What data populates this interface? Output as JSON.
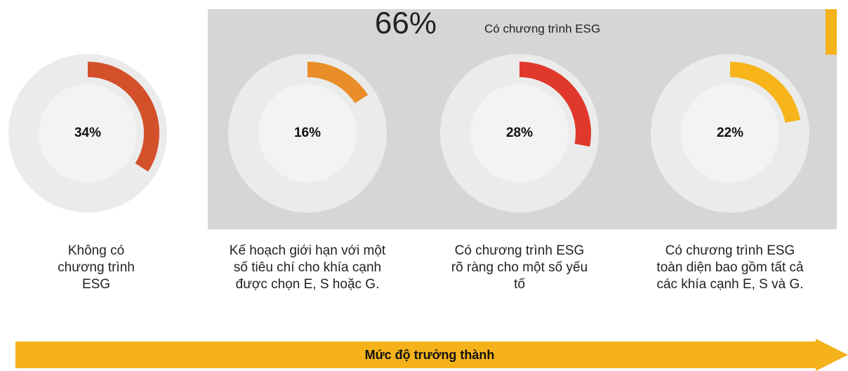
{
  "chart_data": {
    "type": "donut",
    "group_label": "66%",
    "group_text": "Có chương trình ESG",
    "categories": [
      "Không có chương trình ESG",
      "Kế hoạch giới hạn với một số tiêu chí cho khía cạnh được chọn E, S hoặc G.",
      "Có chương trình ESG rõ ràng cho một số yếu tố",
      "Có chương trình ESG toàn diện bao gồm tất cả các khía cạnh E, S và G."
    ],
    "values": [
      34,
      16,
      28,
      22
    ],
    "value_labels": [
      "34%",
      "16%",
      "28%",
      "22%"
    ],
    "colors": [
      "#d4502a",
      "#e88d27",
      "#e0382a",
      "#f7b51b"
    ],
    "axis_label": "Mức độ trưởng thành"
  }
}
